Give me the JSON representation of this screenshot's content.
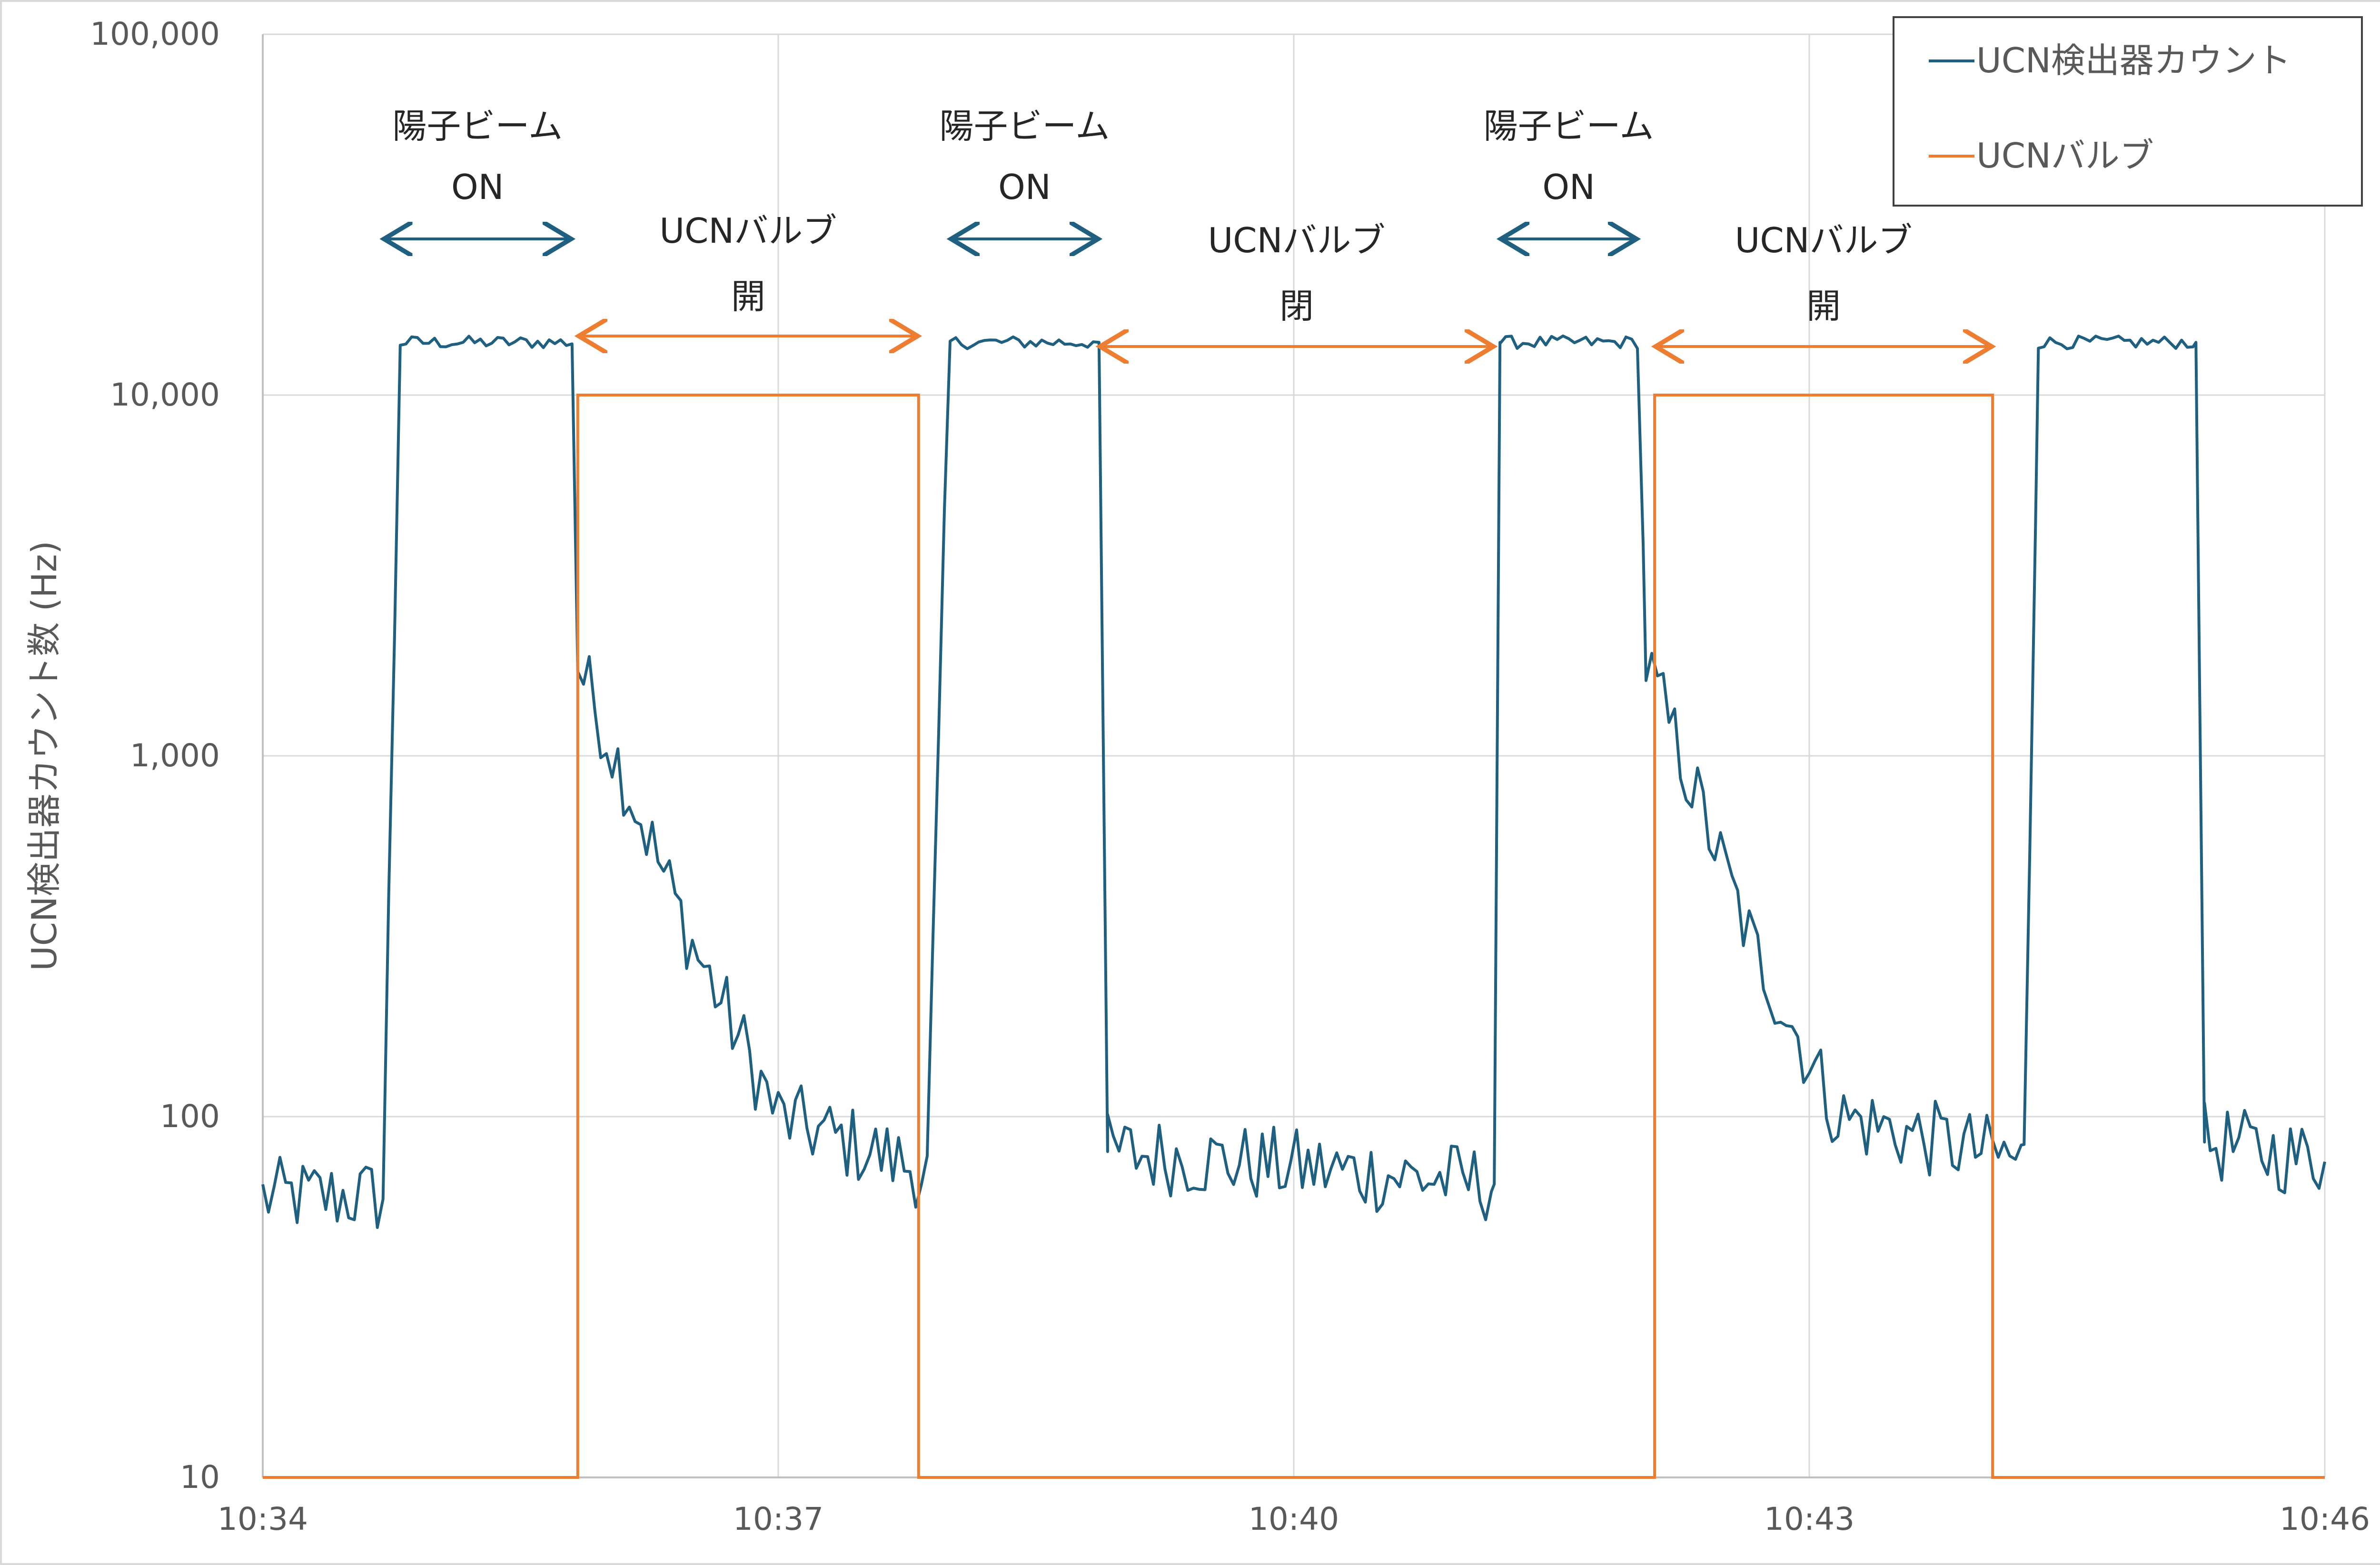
{
  "chart_data": {
    "type": "line",
    "title": "",
    "xlabel": "",
    "ylabel": "UCN検出器カウント数 (Hz)",
    "yscale": "log",
    "ylim": [
      10,
      100000
    ],
    "xlim": [
      "10:34",
      "10:46"
    ],
    "grid": true,
    "legend_position": "top-right",
    "x_ticks": [
      "10:34",
      "10:37",
      "10:40",
      "10:43",
      "10:46"
    ],
    "y_ticks": [
      "10",
      "100",
      "1,000",
      "10,000",
      "100,000"
    ],
    "colors": {
      "detector": "#1f5f7f",
      "valve": "#ed7d31",
      "grid": "#d9d9d9",
      "axis": "#bfbfbf"
    },
    "series": [
      {
        "name": "UCN検出器カウント",
        "description_points": [
          [
            "10:34:00",
            60
          ],
          [
            "10:34:42",
            60
          ],
          [
            "10:34:48",
            14000
          ],
          [
            "10:35:48",
            14000
          ],
          [
            "10:35:50",
            1800
          ],
          [
            "10:36:30",
            300
          ],
          [
            "10:37:00",
            100
          ],
          [
            "10:37:52",
            70
          ],
          [
            "10:38:00",
            14000
          ],
          [
            "10:38:52",
            14000
          ],
          [
            "10:38:55",
            80
          ],
          [
            "10:41:10",
            65
          ],
          [
            "10:41:12",
            14000
          ],
          [
            "10:42:00",
            14000
          ],
          [
            "10:42:03",
            1800
          ],
          [
            "10:42:40",
            300
          ],
          [
            "10:43:10",
            100
          ],
          [
            "10:44:15",
            75
          ],
          [
            "10:44:20",
            14000
          ],
          [
            "10:45:15",
            14000
          ],
          [
            "10:45:18",
            85
          ],
          [
            "10:46:00",
            75
          ]
        ]
      },
      {
        "name": "UCNバルブ",
        "points": [
          [
            "10:34:00",
            10
          ],
          [
            "10:35:50",
            10
          ],
          [
            "10:35:50",
            10000
          ],
          [
            "10:37:49",
            10000
          ],
          [
            "10:37:49",
            10
          ],
          [
            "10:42:06",
            10
          ],
          [
            "10:42:06",
            10000
          ],
          [
            "10:44:04",
            10000
          ],
          [
            "10:44:04",
            10
          ],
          [
            "10:46:00",
            10
          ]
        ]
      }
    ],
    "annotations": [
      {
        "text": "陽子ビーム",
        "text2": "ON",
        "from": "10:34:42",
        "to": "10:35:48",
        "color": "#1f5f7f"
      },
      {
        "text": "UCNバルブ",
        "text2": "開",
        "from": "10:35:50",
        "to": "10:37:49",
        "color": "#ed7d31"
      },
      {
        "text": "陽子ビーム",
        "text2": "ON",
        "from": "10:38:00",
        "to": "10:38:52",
        "color": "#1f5f7f"
      },
      {
        "text": "UCNバルブ",
        "text2": "閉",
        "from": "10:38:52",
        "to": "10:41:10",
        "color": "#ed7d31"
      },
      {
        "text": "陽子ビーム",
        "text2": "ON",
        "from": "10:41:12",
        "to": "10:42:00",
        "color": "#1f5f7f"
      },
      {
        "text": "UCNバルブ",
        "text2": "開",
        "from": "10:42:06",
        "to": "10:44:04",
        "color": "#ed7d31"
      }
    ]
  }
}
